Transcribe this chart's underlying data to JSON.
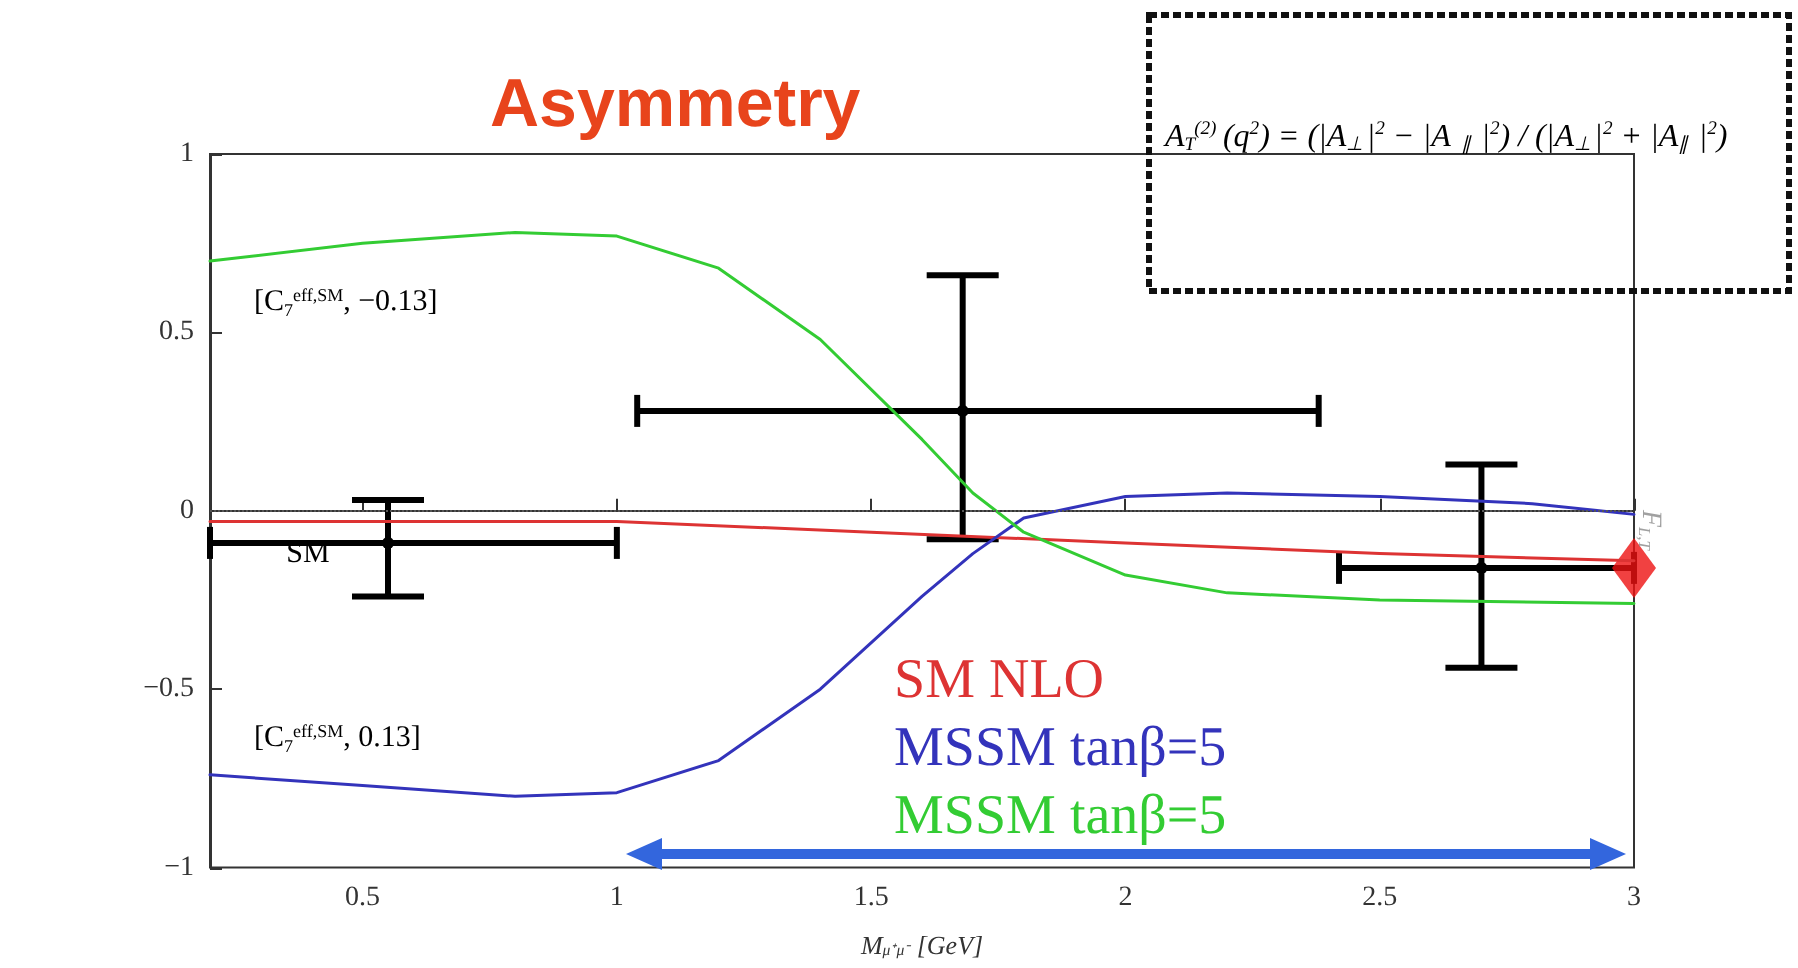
{
  "chart_data": {
    "type": "line",
    "title": "Asymmetry",
    "xlabel": "M$_{μ⁺μ⁻}$ [GeV]",
    "xlim": [
      0.2,
      3
    ],
    "xticks": [
      0.5,
      1,
      1.5,
      2,
      2.5,
      3
    ],
    "ylim": [
      -1,
      1
    ],
    "yticks": [
      {
        "value": -1,
        "label": "−1"
      },
      {
        "value": -0.5,
        "label": "−0.5"
      },
      0,
      0.5,
      1
    ],
    "grid": false,
    "legend": "bottom",
    "line_style": "solid",
    "marker": "none",
    "ref_lines": [
      {
        "axis": "y",
        "value": 0,
        "label": null,
        "color": "#555555",
        "line_style": "dotted"
      }
    ],
    "series": [
      {
        "name": "SM NLO",
        "color": "#dd3333",
        "x": [
          0.2,
          0.6,
          1.0,
          1.5,
          2.0,
          2.5,
          3.0
        ],
        "values": [
          -0.03,
          -0.03,
          -0.03,
          -0.06,
          -0.09,
          -0.12,
          -0.14
        ]
      },
      {
        "name": "MSSM tanβ=5",
        "color": "#3333bb",
        "x": [
          0.2,
          0.5,
          0.8,
          1.0,
          1.2,
          1.4,
          1.6,
          1.7,
          1.8,
          2.0,
          2.2,
          2.5,
          2.8,
          3.0
        ],
        "values": [
          -0.74,
          -0.77,
          -0.8,
          -0.79,
          -0.7,
          -0.5,
          -0.24,
          -0.12,
          -0.02,
          0.04,
          0.05,
          0.04,
          0.02,
          -0.01
        ]
      },
      {
        "name": "MSSM tanβ=5",
        "color": "#33cc33",
        "x": [
          0.2,
          0.5,
          0.8,
          1.0,
          1.2,
          1.4,
          1.6,
          1.7,
          1.8,
          2.0,
          2.2,
          2.5,
          3.0
        ],
        "values": [
          0.7,
          0.75,
          0.78,
          0.77,
          0.68,
          0.48,
          0.2,
          0.05,
          -0.06,
          -0.18,
          -0.23,
          -0.25,
          -0.26
        ]
      },
      {
        "type": "scatter",
        "color": "#000000",
        "marker": "circle",
        "x": [
          0.55,
          1.68,
          2.7
        ],
        "values": [
          -0.09,
          0.28,
          -0.16
        ],
        "errors": [
          [
            -0.24,
            0.03
          ],
          [
            -0.08,
            0.66
          ],
          [
            -0.44,
            0.13
          ]
        ],
        "xerrors": [
          [
            0.2,
            1.0
          ],
          [
            1.04,
            2.38
          ],
          [
            2.42,
            3.0
          ]
        ]
      },
      {
        "type": "scatter",
        "name": "F$_{L,T}$",
        "color": "#ee1111",
        "marker": "diamond",
        "x": [
          3.0
        ],
        "values": [
          -0.16
        ]
      }
    ],
    "annotations": [
      "A$_{T}$$^{(2)}$(q$^{2}$) = (|A$_{⊥}$|$^{2}$ − |A$_{∥}$|$^{2}$) / (|A$_{⊥}$|$^{2}$ + |A$_{∥}$|$^{2}$)",
      "[C$_{7}$$^{eff,SM}$, −0.13]",
      "[C$_{7}$$^{eff,SM}$, 0.13]",
      {
        "text": "SM",
        "x": 0.35,
        "y": -0.12
      }
    ]
  }
}
